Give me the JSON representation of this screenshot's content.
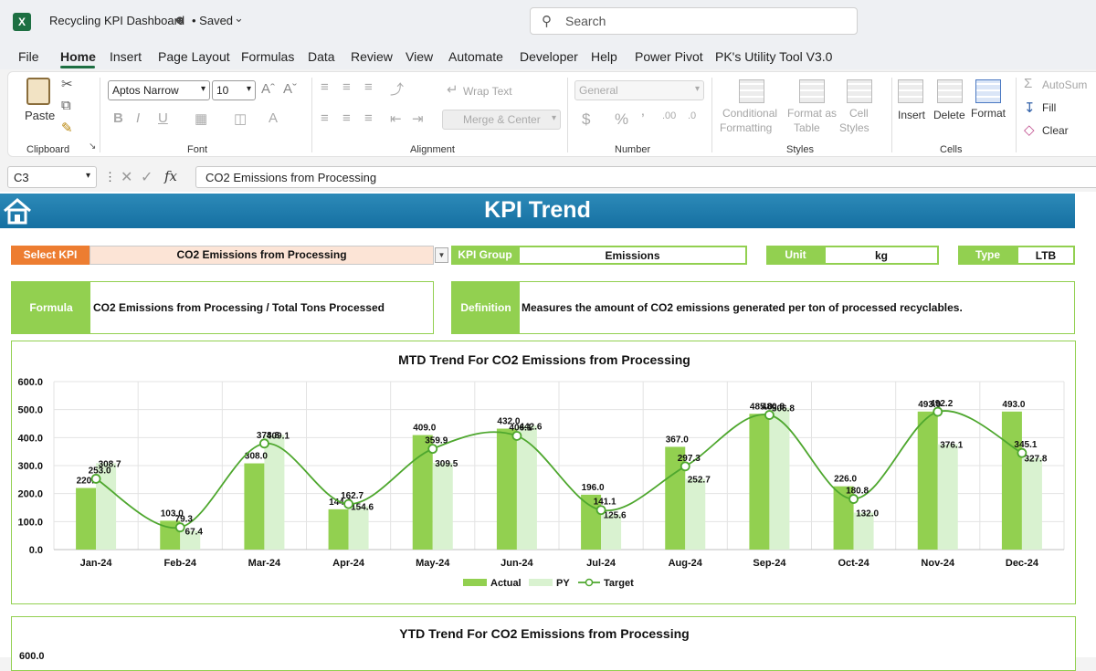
{
  "app": {
    "title": "Recycling KPI Dashboard",
    "saved_label": "• Saved",
    "search_placeholder": "Search"
  },
  "menu": {
    "tabs": [
      "File",
      "Home",
      "Insert",
      "Page Layout",
      "Formulas",
      "Data",
      "Review",
      "View",
      "Automate",
      "Developer",
      "Help",
      "Power Pivot",
      "PK's Utility Tool V3.0"
    ]
  },
  "ribbon": {
    "clipboard": {
      "label": "Clipboard",
      "paste": "Paste"
    },
    "font": {
      "label": "Font",
      "name": "Aptos Narrow",
      "size": "10"
    },
    "alignment": {
      "label": "Alignment",
      "wrap_text": "Wrap Text",
      "merge_center": "Merge & Center"
    },
    "number": {
      "label": "Number",
      "format": "General",
      "currency": "$",
      "percent": "%"
    },
    "styles": {
      "label": "Styles",
      "conditional": [
        "Conditional",
        "Formatting"
      ],
      "format_table": [
        "Format as",
        "Table"
      ],
      "cell_styles": [
        "Cell",
        "Styles"
      ]
    },
    "cells": {
      "label": "Cells",
      "insert": "Insert",
      "delete": "Delete",
      "format": "Format"
    },
    "editing": {
      "autosum": "AutoSum",
      "fill": "Fill",
      "clear": "Clear"
    }
  },
  "formula_bar": {
    "name_box": "C3",
    "fx": "fx",
    "content": "CO2 Emissions from Processing"
  },
  "dashboard": {
    "title": "KPI Trend",
    "select_kpi_label": "Select KPI",
    "select_kpi_value": "CO2 Emissions from Processing",
    "kpi_group_label": "KPI Group",
    "kpi_group_value": "Emissions",
    "unit_label": "Unit",
    "unit_value": "kg",
    "type_label": "Type",
    "type_value": "LTB",
    "formula_label": "Formula",
    "formula_value": "CO2 Emissions from Processing / Total Tons Processed",
    "definition_label": "Definition",
    "definition_value": "Measures the amount of CO2 emissions generated per ton of processed recyclables."
  },
  "colors": {
    "actual": "#92d050",
    "py": "#d9f2d0",
    "target": "#4ea72e",
    "banner": "#1f7fb0",
    "orange": "#ed7d31"
  },
  "chart_data": [
    {
      "type": "bar",
      "title": "MTD Trend For CO2 Emissions from Processing",
      "categories": [
        "Jan-24",
        "Feb-24",
        "Mar-24",
        "Apr-24",
        "May-24",
        "Jun-24",
        "Jul-24",
        "Aug-24",
        "Sep-24",
        "Oct-24",
        "Nov-24",
        "Dec-24"
      ],
      "series": [
        {
          "name": "Actual",
          "kind": "bar",
          "values": [
            220.0,
            103.0,
            308.0,
            144.0,
            409.0,
            432.0,
            196.0,
            367.0,
            485.0,
            226.0,
            493.0,
            493.0
          ]
        },
        {
          "name": "PY",
          "kind": "bar",
          "values": [
            308.7,
            67.4,
            409.1,
            154.6,
            309.5,
            442.6,
            125.6,
            252.7,
            506.8,
            132.0,
            376.1,
            327.8
          ]
        },
        {
          "name": "Target",
          "kind": "line",
          "values": [
            253.0,
            79.3,
            378.8,
            162.7,
            359.9,
            406.1,
            141.1,
            297.3,
            480.8,
            180.8,
            492.2,
            345.1
          ]
        }
      ],
      "y_ticks": [
        "0.0",
        "100.0",
        "200.0",
        "300.0",
        "400.0",
        "500.0",
        "600.0"
      ],
      "ylim": [
        0,
        600
      ],
      "grid": true,
      "legend": "bottom"
    },
    {
      "type": "bar",
      "title": "YTD Trend For CO2 Emissions from Processing",
      "y_ticks": [
        "600.0"
      ]
    }
  ]
}
